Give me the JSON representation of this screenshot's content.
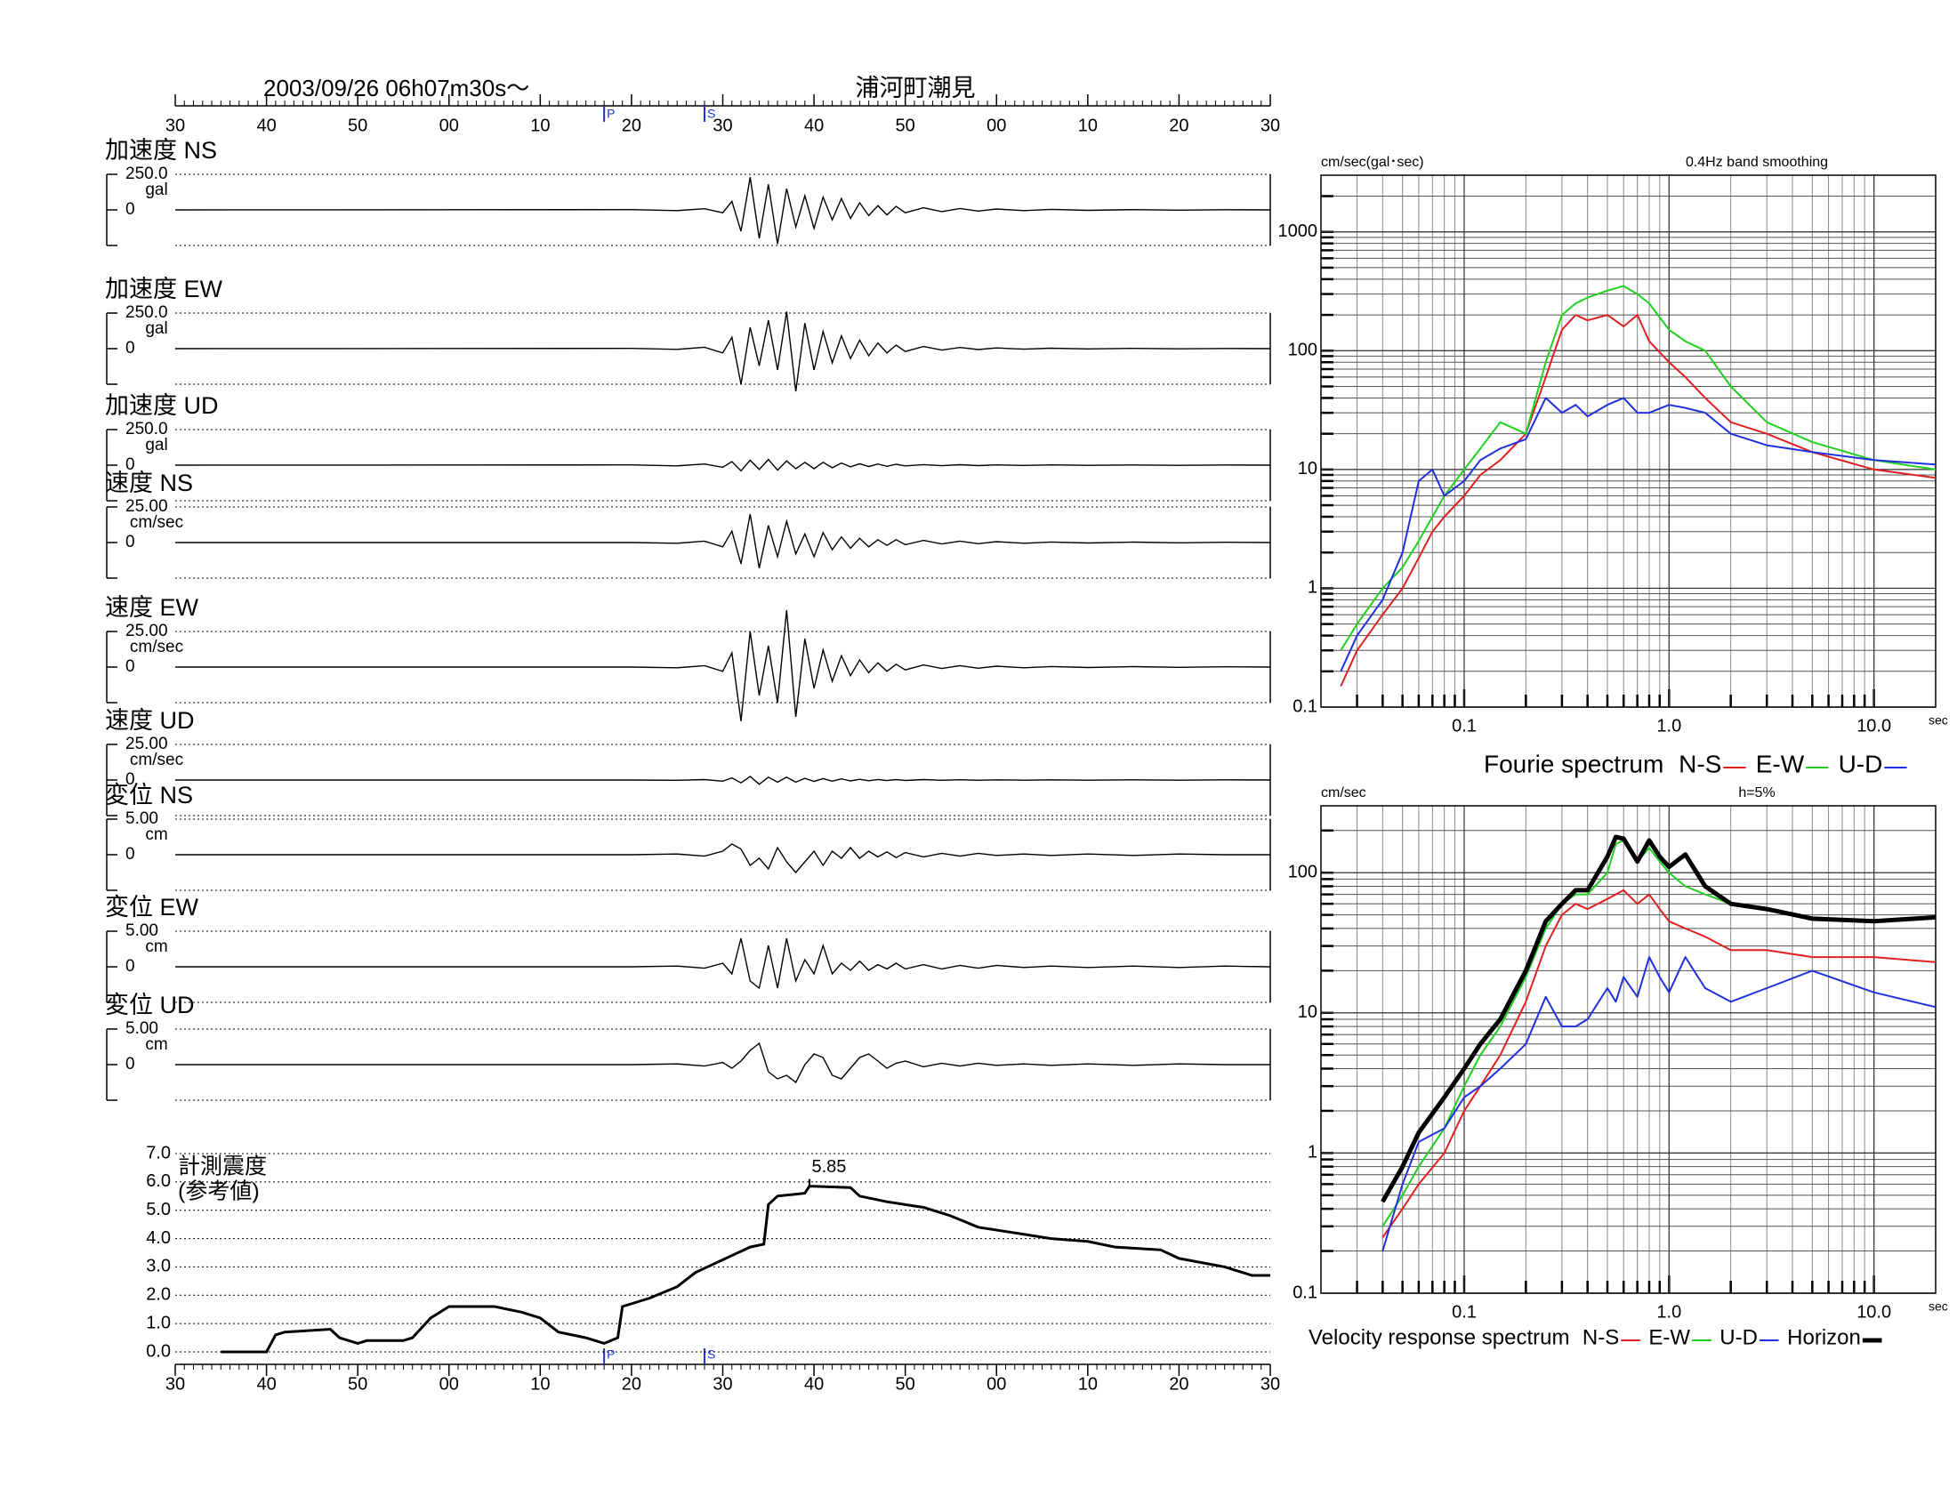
{
  "chart_data": [
    {
      "type": "waveform",
      "title": "2003/09/26  06h07m30s〜",
      "subtitle": "浦河町潮見",
      "xlim": [
        0,
        120
      ],
      "xticks": [
        {
          "value": 0,
          "label": "30"
        },
        {
          "value": 10,
          "label": "40"
        },
        {
          "value": 20,
          "label": "50"
        },
        {
          "value": 30,
          "label": "00"
        },
        {
          "value": 40,
          "label": "10"
        },
        {
          "value": 50,
          "label": "20"
        },
        {
          "value": 60,
          "label": "30"
        },
        {
          "value": 70,
          "label": "40"
        },
        {
          "value": 80,
          "label": "50"
        },
        {
          "value": 90,
          "label": "00"
        },
        {
          "value": 100,
          "label": "10"
        },
        {
          "value": 110,
          "label": "20"
        },
        {
          "value": 120,
          "label": "30"
        }
      ],
      "phases": [
        {
          "label": "P",
          "x": 47
        },
        {
          "label": "S",
          "x": 58
        }
      ],
      "x": [
        0,
        50,
        55,
        58,
        60,
        61,
        62,
        63,
        64,
        65,
        66,
        67,
        68,
        69,
        70,
        71,
        72,
        73,
        74,
        75,
        76,
        77,
        78,
        79,
        80,
        82,
        84,
        86,
        88,
        90,
        93,
        96,
        100,
        105,
        110,
        115,
        120
      ],
      "traces": [
        {
          "name": "加速度 NS",
          "unit": "gal",
          "ylim": [
            -250,
            250
          ],
          "yticks": [
            {
              "value": 250,
              "label": "250.0"
            },
            0
          ],
          "values": [
            0,
            2,
            -5,
            8,
            -20,
            60,
            -150,
            230,
            -200,
            180,
            -240,
            150,
            -120,
            100,
            -130,
            90,
            -70,
            80,
            -60,
            50,
            -40,
            30,
            -35,
            25,
            -20,
            15,
            -12,
            10,
            -8,
            6,
            -5,
            4,
            -3,
            2,
            -2,
            1,
            0
          ]
        },
        {
          "name": "加速度 EW",
          "unit": "gal",
          "ylim": [
            -250,
            250
          ],
          "yticks": [
            {
              "value": 250,
              "label": "250.0"
            },
            0
          ],
          "values": [
            0,
            2,
            -5,
            10,
            -30,
            80,
            -250,
            150,
            -120,
            200,
            -150,
            260,
            -300,
            180,
            -150,
            120,
            -100,
            90,
            -70,
            60,
            -50,
            40,
            -30,
            25,
            -20,
            15,
            -10,
            8,
            -6,
            5,
            -4,
            3,
            -2,
            2,
            -1,
            1,
            0
          ]
        },
        {
          "name": "加速度 UD",
          "unit": "gal",
          "ylim": [
            -250,
            250
          ],
          "yticks": [
            {
              "value": 250,
              "label": "250.0"
            },
            0
          ],
          "values": [
            0,
            2,
            -5,
            8,
            -15,
            25,
            -40,
            35,
            -30,
            40,
            -35,
            30,
            -25,
            20,
            -25,
            20,
            -18,
            15,
            -12,
            10,
            -10,
            8,
            -8,
            6,
            -5,
            4,
            -4,
            3,
            -3,
            2,
            -2,
            2,
            -1,
            1,
            -1,
            1,
            0
          ]
        },
        {
          "name": "速度 NS",
          "unit": "cm/sec",
          "ylim": [
            -25,
            25
          ],
          "yticks": [
            {
              "value": 25,
              "label": "25.00"
            },
            0
          ],
          "values": [
            0,
            0,
            -0.5,
            1,
            -3,
            8,
            -15,
            20,
            -18,
            12,
            -10,
            15,
            -8,
            6,
            -10,
            7,
            -5,
            4,
            -4,
            3,
            -3,
            2,
            -2,
            2,
            -1.5,
            1.5,
            -1,
            1,
            -0.8,
            0.6,
            -0.5,
            0.4,
            -0.3,
            0.3,
            -0.2,
            0.2,
            0
          ]
        },
        {
          "name": "速度 EW",
          "unit": "cm/sec",
          "ylim": [
            -25,
            25
          ],
          "yticks": [
            {
              "value": 25,
              "label": "25.00"
            },
            0
          ],
          "values": [
            0,
            0,
            -0.5,
            1,
            -3,
            10,
            -38,
            25,
            -20,
            15,
            -25,
            40,
            -35,
            20,
            -15,
            12,
            -10,
            8,
            -6,
            5,
            -4,
            3,
            -3,
            2,
            -2,
            1.5,
            -1,
            1,
            -0.8,
            0.6,
            -0.5,
            0.4,
            -0.3,
            0.3,
            -0.2,
            0.2,
            0
          ]
        },
        {
          "name": "速度 UD",
          "unit": "cm/sec",
          "ylim": [
            -25,
            25
          ],
          "yticks": [
            {
              "value": 25,
              "label": "25.00"
            },
            0
          ],
          "values": [
            0,
            0,
            -0.2,
            0.3,
            -0.8,
            1.5,
            -2,
            2.5,
            -3,
            2,
            -1.5,
            2,
            -1.5,
            1.2,
            -1,
            1,
            -0.8,
            0.8,
            -0.6,
            0.5,
            -0.5,
            0.4,
            -0.4,
            0.3,
            -0.3,
            0.3,
            -0.2,
            0.2,
            -0.2,
            0.1,
            -0.1,
            0.1,
            -0.1,
            0.1,
            -0.1,
            0.1,
            0
          ]
        },
        {
          "name": "変位 NS",
          "unit": "cm",
          "ylim": [
            -5,
            5
          ],
          "yticks": [
            {
              "value": 5,
              "label": "5.00"
            },
            0
          ],
          "values": [
            0,
            0,
            0.1,
            -0.2,
            0.5,
            1.5,
            0.8,
            -1.5,
            -0.5,
            -2,
            1,
            -1,
            -2.5,
            -1,
            0.5,
            -1.5,
            0.5,
            -0.5,
            1,
            -0.5,
            0.5,
            -0.3,
            0.4,
            -0.4,
            0.3,
            -0.3,
            0.2,
            -0.2,
            0.2,
            -0.1,
            0.1,
            -0.1,
            0.1,
            -0.1,
            0.1,
            0,
            0
          ]
        },
        {
          "name": "変位 EW",
          "unit": "cm",
          "ylim": [
            -5,
            5
          ],
          "yticks": [
            {
              "value": 5,
              "label": "5.00"
            },
            0
          ],
          "values": [
            0,
            0,
            0.1,
            -0.2,
            0.5,
            -1,
            4,
            -2,
            -3,
            3,
            -3,
            4,
            -2,
            1,
            -1,
            3,
            -1,
            0.5,
            -0.5,
            0.8,
            -0.5,
            0.3,
            -0.3,
            0.5,
            -0.3,
            0.3,
            -0.3,
            0.2,
            -0.2,
            0.2,
            -0.1,
            0.1,
            -0.1,
            0.1,
            -0.1,
            0.1,
            0
          ]
        },
        {
          "name": "変位 UD",
          "unit": "cm",
          "ylim": [
            -5,
            5
          ],
          "yticks": [
            {
              "value": 5,
              "label": "5.00"
            },
            0
          ],
          "values": [
            0,
            0,
            0.1,
            -0.2,
            0.3,
            -0.5,
            0.5,
            2,
            3,
            -1,
            -2,
            -1.5,
            -2.5,
            0,
            1.5,
            1,
            -1.5,
            -2,
            -0.5,
            1,
            1.5,
            0.5,
            -0.5,
            0.2,
            0.5,
            -0.3,
            0.2,
            -0.2,
            0.2,
            -0.1,
            0.1,
            -0.1,
            0.1,
            -0.1,
            0.1,
            0,
            0
          ]
        }
      ]
    },
    {
      "type": "line",
      "label": "計測震度",
      "sublabel": "(参考値)",
      "xlim": [
        0,
        120
      ],
      "xticks": [
        {
          "value": 0,
          "label": "30"
        },
        {
          "value": 10,
          "label": "40"
        },
        {
          "value": 20,
          "label": "50"
        },
        {
          "value": 30,
          "label": "00"
        },
        {
          "value": 40,
          "label": "10"
        },
        {
          "value": 50,
          "label": "20"
        },
        {
          "value": 60,
          "label": "30"
        },
        {
          "value": 70,
          "label": "40"
        },
        {
          "value": 80,
          "label": "50"
        },
        {
          "value": 90,
          "label": "00"
        },
        {
          "value": 100,
          "label": "10"
        },
        {
          "value": 110,
          "label": "20"
        },
        {
          "value": 120,
          "label": "30"
        }
      ],
      "ylim": [
        0,
        7
      ],
      "yticks": [
        {
          "value": 0,
          "label": "0.0"
        },
        {
          "value": 1,
          "label": "1.0"
        },
        {
          "value": 2,
          "label": "2.0"
        },
        {
          "value": 3,
          "label": "3.0"
        },
        {
          "value": 4,
          "label": "4.0"
        },
        {
          "value": 5,
          "label": "5.0"
        },
        {
          "value": 6,
          "label": "6.0"
        },
        {
          "value": 7,
          "label": "7.0"
        }
      ],
      "grid": true,
      "phases": [
        {
          "label": "P",
          "x": 47
        },
        {
          "label": "S",
          "x": 58
        }
      ],
      "x": [
        5,
        10,
        11,
        12,
        17,
        18,
        20,
        21,
        25,
        26,
        28,
        30,
        35,
        38,
        40,
        42,
        45,
        47,
        48.5,
        49,
        52,
        55,
        57,
        59,
        63,
        64.5,
        65,
        66,
        69,
        69.5,
        74,
        75,
        78,
        82,
        85,
        88,
        92,
        96,
        100,
        103,
        108,
        110,
        115,
        118,
        120
      ],
      "values": [
        0,
        0,
        0.6,
        0.7,
        0.8,
        0.5,
        0.3,
        0.4,
        0.4,
        0.5,
        1.2,
        1.6,
        1.6,
        1.4,
        1.2,
        0.7,
        0.5,
        0.3,
        0.5,
        1.6,
        1.9,
        2.3,
        2.8,
        3.1,
        3.7,
        3.8,
        5.2,
        5.5,
        5.6,
        5.85,
        5.8,
        5.5,
        5.3,
        5.1,
        4.8,
        4.4,
        4.2,
        4.0,
        3.9,
        3.7,
        3.6,
        3.3,
        3.0,
        2.7,
        2.7
      ],
      "peak": {
        "x": 69.5,
        "value": 5.85
      }
    },
    {
      "type": "loglog",
      "ylabel": "cm/sec(gal･sec)",
      "note": "0.4Hz band smoothing",
      "xlabel": "sec",
      "legend_title": "Fourie spectrum",
      "xlim": [
        0.02,
        20
      ],
      "xticks": [
        0.1,
        {
          "value": 1,
          "label": "1.0"
        },
        {
          "value": 10,
          "label": "10.0"
        }
      ],
      "ylim": [
        0.1,
        3000
      ],
      "yticks": [
        0.1,
        1,
        10,
        100,
        1000
      ],
      "grid": true,
      "x": [
        0.025,
        0.03,
        0.04,
        0.05,
        0.06,
        0.07,
        0.08,
        0.1,
        0.12,
        0.15,
        0.2,
        0.25,
        0.3,
        0.35,
        0.4,
        0.5,
        0.6,
        0.7,
        0.8,
        1.0,
        1.2,
        1.5,
        2,
        3,
        5,
        10,
        20
      ],
      "series": [
        {
          "name": "N-S",
          "color": "#e02020",
          "linewidth": 2,
          "values": [
            0.15,
            0.3,
            0.6,
            1,
            1.8,
            3,
            4,
            6,
            9,
            12,
            20,
            60,
            150,
            200,
            180,
            200,
            160,
            200,
            120,
            80,
            60,
            40,
            25,
            20,
            14,
            10,
            8.5
          ]
        },
        {
          "name": "E-W",
          "color": "#20d020",
          "linewidth": 2,
          "values": [
            0.3,
            0.5,
            1,
            1.5,
            2.5,
            4,
            6,
            10,
            15,
            25,
            20,
            80,
            200,
            250,
            280,
            320,
            350,
            300,
            250,
            150,
            120,
            100,
            50,
            25,
            17,
            12,
            10
          ]
        },
        {
          "name": "U-D",
          "color": "#2030e0",
          "linewidth": 2,
          "values": [
            0.2,
            0.4,
            0.8,
            2,
            8,
            10,
            6,
            8,
            12,
            15,
            18,
            40,
            30,
            35,
            28,
            35,
            40,
            30,
            30,
            35,
            33,
            30,
            20,
            16,
            14,
            12,
            11
          ]
        }
      ]
    },
    {
      "type": "loglog",
      "ylabel": "cm/sec",
      "note": "h=5%",
      "xlabel": "sec",
      "legend_title": "Velocity response spectrum",
      "xlim": [
        0.02,
        20
      ],
      "xticks": [
        0.1,
        {
          "value": 1,
          "label": "1.0"
        },
        {
          "value": 10,
          "label": "10.0"
        }
      ],
      "ylim": [
        0.1,
        300
      ],
      "yticks": [
        0.1,
        1,
        10,
        100
      ],
      "grid": true,
      "x": [
        0.04,
        0.05,
        0.06,
        0.08,
        0.1,
        0.12,
        0.15,
        0.2,
        0.25,
        0.3,
        0.35,
        0.4,
        0.5,
        0.55,
        0.6,
        0.7,
        0.8,
        0.9,
        1.0,
        1.2,
        1.5,
        2,
        3,
        5,
        10,
        20
      ],
      "series": [
        {
          "name": "N-S",
          "color": "#e02020",
          "linewidth": 2,
          "values": [
            0.25,
            0.4,
            0.6,
            1,
            2,
            3,
            5,
            12,
            30,
            50,
            60,
            55,
            65,
            70,
            75,
            60,
            70,
            55,
            45,
            40,
            35,
            28,
            28,
            25,
            25,
            23
          ]
        },
        {
          "name": "E-W",
          "color": "#20d020",
          "linewidth": 2,
          "values": [
            0.3,
            0.5,
            0.8,
            1.5,
            3,
            5,
            8,
            18,
            40,
            60,
            70,
            70,
            100,
            160,
            170,
            120,
            150,
            120,
            100,
            80,
            70,
            60,
            55,
            48,
            45,
            48
          ]
        },
        {
          "name": "U-D",
          "color": "#2030e0",
          "linewidth": 2,
          "values": [
            0.2,
            0.6,
            1.2,
            1.5,
            2.5,
            3,
            4,
            6,
            13,
            8,
            8,
            9,
            15,
            12,
            18,
            13,
            25,
            18,
            14,
            25,
            15,
            12,
            15,
            20,
            14,
            11
          ]
        },
        {
          "name": "Horizon",
          "color": "#000000",
          "linewidth": 5,
          "values": [
            0.45,
            0.8,
            1.4,
            2.5,
            4,
            6,
            9,
            20,
            45,
            60,
            75,
            75,
            130,
            180,
            175,
            120,
            170,
            130,
            110,
            135,
            80,
            60,
            55,
            47,
            45,
            48
          ]
        }
      ]
    }
  ]
}
